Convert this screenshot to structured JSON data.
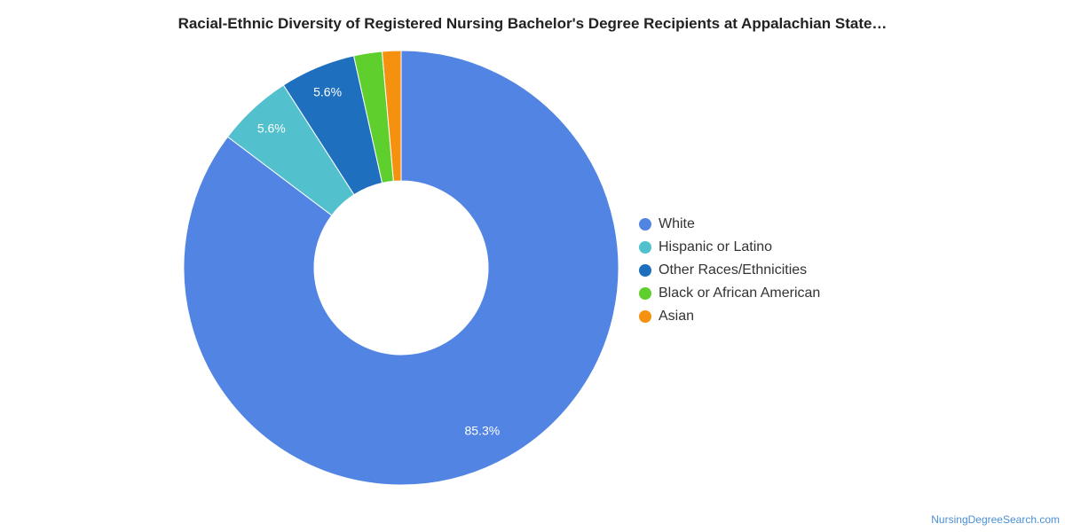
{
  "chart_data": {
    "type": "pie",
    "title": "Racial-Ethnic Diversity of Registered Nursing Bachelor's Degree Recipients at Appalachian State…",
    "donut": true,
    "legend_position": "right",
    "slices": [
      {
        "label": "White",
        "value": 85.3,
        "display": "85.3%",
        "color": "#5285e3"
      },
      {
        "label": "Hispanic or Latino",
        "value": 5.6,
        "display": "5.6%",
        "color": "#52c1cd"
      },
      {
        "label": "Other Races/Ethnicities",
        "value": 5.6,
        "display": "5.6%",
        "color": "#1f6fbf"
      },
      {
        "label": "Black or African American",
        "value": 2.1,
        "display": "",
        "color": "#5fcf2e"
      },
      {
        "label": "Asian",
        "value": 1.4,
        "display": "",
        "color": "#f6910f"
      }
    ]
  },
  "watermark": "NursingDegreeSearch.com"
}
